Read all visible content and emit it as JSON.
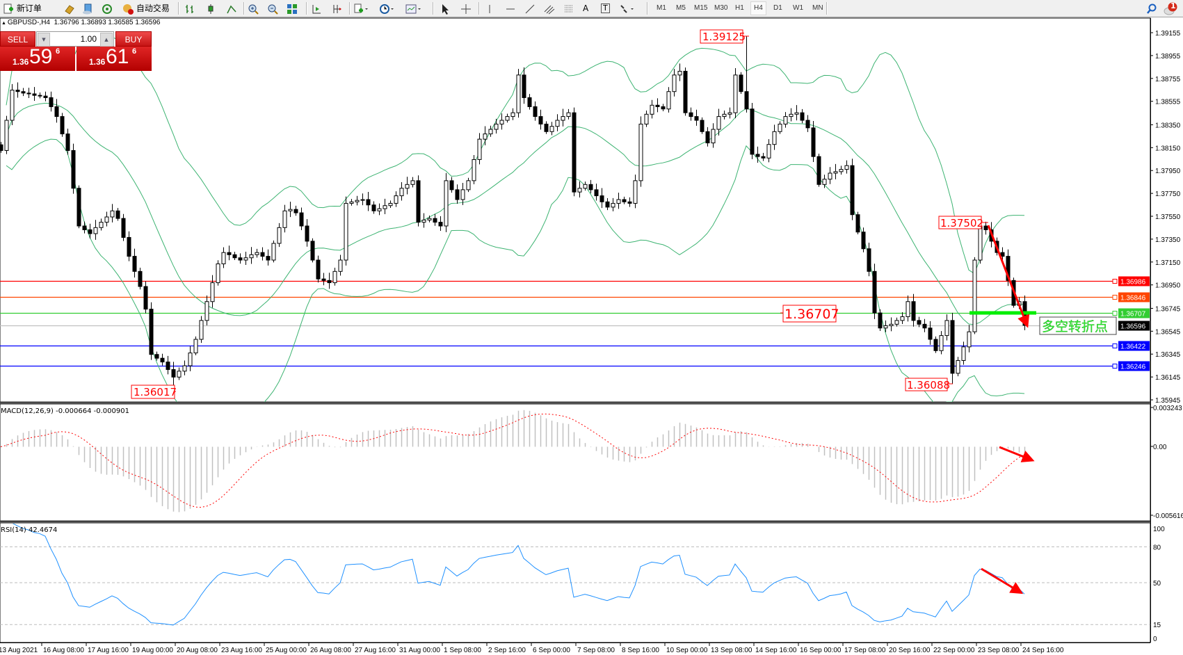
{
  "toolbar": {
    "new_order": "新订单",
    "auto_trading": "自动交易",
    "text_tool": "A",
    "label_tool": "T",
    "timeframes": [
      "M1",
      "M5",
      "M15",
      "M30",
      "H1",
      "H4",
      "D1",
      "W1",
      "MN"
    ],
    "active_timeframe": "H4",
    "notification_count": "1"
  },
  "chart": {
    "symbol": "GBPUSD-,H4",
    "ohlc": "1.36796 1.36893 1.36585 1.36596",
    "colors": {
      "bands": "#3cb371",
      "bull_body": "#ffffff",
      "bear_body": "#000000",
      "rsi": "#1e90ff",
      "macd_hist": "#c0c0c0",
      "macd_signal": "#ff0000",
      "annotation": "#ff0000"
    }
  },
  "trade_panel": {
    "sell_label": "SELL",
    "buy_label": "BUY",
    "lots": "1.00",
    "sell_prefix": "1.36",
    "sell_big": "59",
    "sell_sup": "6",
    "buy_prefix": "1.36",
    "buy_big": "61",
    "buy_sup": "6"
  },
  "price_axis": {
    "labels": [
      "1.39155",
      "1.38955",
      "1.38755",
      "1.38555",
      "1.38350",
      "1.38150",
      "1.37950",
      "1.37750",
      "1.37550",
      "1.37350",
      "1.37150",
      "1.36950",
      "1.36745",
      "1.36545",
      "1.36345",
      "1.36145",
      "1.35945"
    ]
  },
  "levels": [
    {
      "price": "1.36986",
      "color": "#ff0000"
    },
    {
      "price": "1.36846",
      "color": "#ff4500"
    },
    {
      "price": "1.36707",
      "color": "#32cd32"
    },
    {
      "price": "1.36596",
      "color": "#000000",
      "line": "#c0c0c0"
    },
    {
      "price": "1.36422",
      "color": "#0000ff"
    },
    {
      "price": "1.36246",
      "color": "#0000ff"
    }
  ],
  "annotations": {
    "high_1": "1.39125",
    "low_1": "1.36017",
    "high_2": "1.37502",
    "low_2": "1.36088",
    "pivot": "1.36707",
    "pivot_note": "多空转折点"
  },
  "candles": {
    "close": [
      1.38125,
      1.38389,
      1.38653,
      1.3864,
      1.38627,
      1.3862,
      1.38607,
      1.38601,
      1.38587,
      1.38508,
      1.38422,
      1.3827,
      1.38125,
      1.37795,
      1.37465,
      1.37432,
      1.37398,
      1.37451,
      1.37498,
      1.37544,
      1.37597,
      1.37531,
      1.37365,
      1.372,
      1.37068,
      1.36936,
      1.36738,
      1.36342,
      1.36309,
      1.36276,
      1.3621,
      1.36144,
      1.36196,
      1.36243,
      1.36355,
      1.36474,
      1.36639,
      1.36804,
      1.36969,
      1.37134,
      1.37233,
      1.37214,
      1.37187,
      1.37167,
      1.37187,
      1.37214,
      1.37233,
      1.372,
      1.37167,
      1.37313,
      1.37451,
      1.37597,
      1.3761,
      1.3758,
      1.37465,
      1.37332,
      1.37167,
      1.37002,
      1.36989,
      1.36969,
      1.37068,
      1.37167,
      1.37663,
      1.37676,
      1.37689,
      1.37696,
      1.37649,
      1.37597,
      1.37616,
      1.37643,
      1.37663,
      1.37729,
      1.37795,
      1.37828,
      1.37861,
      1.37498,
      1.37517,
      1.37531,
      1.37498,
      1.37465,
      1.37861,
      1.37782,
      1.37696,
      1.37782,
      1.37861,
      1.38046,
      1.38224,
      1.3827,
      1.3831,
      1.38356,
      1.38389,
      1.38422,
      1.38455,
      1.38785,
      1.38587,
      1.38508,
      1.38422,
      1.38356,
      1.3829,
      1.38336,
      1.38389,
      1.38422,
      1.38455,
      1.37762,
      1.37795,
      1.37828,
      1.37782,
      1.37729,
      1.37676,
      1.3763,
      1.37663,
      1.37696,
      1.37676,
      1.37663,
      1.37861,
      1.38356,
      1.38442,
      1.38521,
      1.38508,
      1.38488,
      1.3864,
      1.38785,
      1.38818,
      1.38455,
      1.38422,
      1.38389,
      1.3829,
      1.38191,
      1.3831,
      1.38422,
      1.38442,
      1.38455,
      1.38785,
      1.3864,
      1.38488,
      1.38092,
      1.38072,
      1.38059,
      1.38178,
      1.3829,
      1.38356,
      1.38422,
      1.38442,
      1.38455,
      1.38389,
      1.38323,
      1.38072,
      1.37828,
      1.37874,
      1.37927,
      1.3794,
      1.3796,
      1.37993,
      1.37564,
      1.37412,
      1.37266,
      1.37068,
      1.36705,
      1.36573,
      1.36593,
      1.36606,
      1.36639,
      1.36672,
      1.36804,
      1.36639,
      1.36606,
      1.36573,
      1.36474,
      1.36375,
      1.36507,
      1.36639,
      1.36177,
      1.36289,
      1.36408,
      1.3654,
      1.37167,
      1.37465,
      1.37432,
      1.37332,
      1.37233,
      1.372,
      1.36989,
      1.36771,
      1.36804,
      1.36596
    ]
  },
  "macd": {
    "label": "MACD(12,26,9) -0.000664 -0.000901",
    "axis": [
      "0.003243",
      "0.00",
      "-0.005616"
    ]
  },
  "rsi": {
    "label": "RSI(14) 42.4674",
    "axis": [
      "100",
      "80",
      "50",
      "15",
      "0"
    ]
  },
  "time_axis": {
    "labels": [
      "13 Aug 2021",
      "16 Aug 08:00",
      "17 Aug 16:00",
      "19 Aug 00:00",
      "20 Aug 08:00",
      "23 Aug 16:00",
      "25 Aug 00:00",
      "26 Aug 08:00",
      "27 Aug 16:00",
      "31 Aug 00:00",
      "1 Sep 08:00",
      "2 Sep 16:00",
      "6 Sep 00:00",
      "7 Sep 08:00",
      "8 Sep 16:00",
      "10 Sep 00:00",
      "13 Sep 08:00",
      "14 Sep 16:00",
      "16 Sep 00:00",
      "17 Sep 08:00",
      "20 Sep 16:00",
      "22 Sep 00:00",
      "23 Sep 08:00",
      "24 Sep 16:00"
    ]
  }
}
